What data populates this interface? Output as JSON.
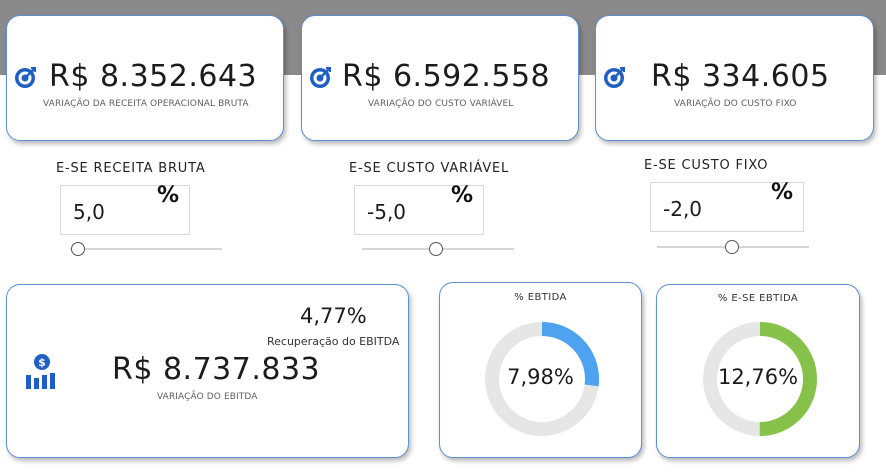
{
  "kpis": [
    {
      "value": "R$ 8.352.643",
      "label": "VARIAÇÃO DA RECEITA OPERACIONAL BRUTA",
      "icon": "target-icon"
    },
    {
      "value": "R$ 6.592.558",
      "label": "VARIAÇÃO DO CUSTO VARIÁVEL",
      "icon": "target-icon"
    },
    {
      "value": "R$ 334.605",
      "label": "VARIAÇÃO DO CUSTO FIXO",
      "icon": "target-icon"
    }
  ],
  "whatif": [
    {
      "title": "E-SE RECEITA BRUTA",
      "value": "5,0",
      "unit": "%"
    },
    {
      "title": "E-SE CUSTO VARIÁVEL",
      "value": "-5,0",
      "unit": "%"
    },
    {
      "title": "E-SE CUSTO FIXO",
      "value": "-2,0",
      "unit": "%"
    }
  ],
  "ebitda": {
    "percent": "4,77%",
    "percent_label": "Recuperação do EBITDA",
    "value": "R$ 8.737.833",
    "label": "VARIAÇÃO DO EBITDA",
    "icon": "money-chart-icon"
  },
  "gauges": [
    {
      "title": "% EBTIDA",
      "value_text": "7,98%",
      "fraction": 0.27,
      "color": "#4da3ef"
    },
    {
      "title": "% E-SE EBTIDA",
      "value_text": "12,76%",
      "fraction": 0.5,
      "color": "#86c24a"
    }
  ],
  "colors": {
    "accent": "#1f5fc4",
    "card_border": "#5b8fd6",
    "band": "#8a8a8a"
  }
}
